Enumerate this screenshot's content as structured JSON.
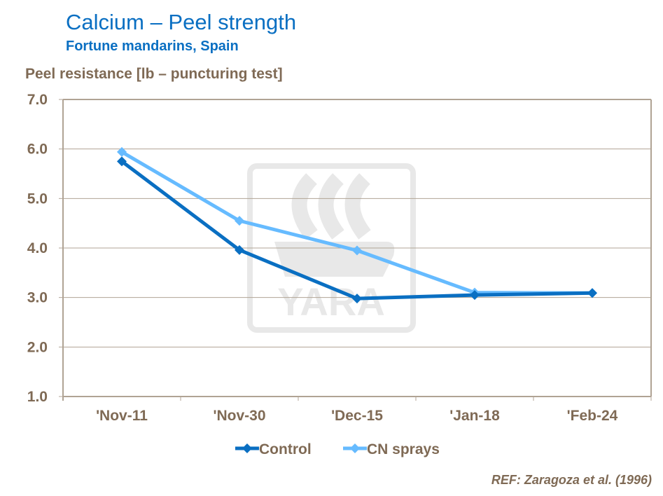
{
  "chart_data": {
    "type": "line",
    "title": "Calcium – Peel strength",
    "subtitle": "Fortune mandarins, Spain",
    "ylabel": "Peel resistance [lb – puncturing test]",
    "xlabel": "",
    "categories": [
      "'Nov-11",
      "'Nov-30",
      "'Dec-15",
      "'Jan-18",
      "'Feb-24"
    ],
    "ylim": [
      1.0,
      7.0
    ],
    "yticks": [
      "1.0",
      "2.0",
      "3.0",
      "4.0",
      "5.0",
      "6.0",
      "7.0"
    ],
    "grid": true,
    "legend_position": "bottom",
    "series": [
      {
        "name": "Control",
        "color": "#0a6fc2",
        "values": [
          5.75,
          3.96,
          2.98,
          3.05,
          3.09
        ]
      },
      {
        "name": "CN sprays",
        "color": "#66bbff",
        "values": [
          5.94,
          4.55,
          3.95,
          3.1,
          3.09
        ]
      }
    ],
    "reference": "REF: Zaragoza et al. (1996)",
    "watermark": "YARA"
  }
}
